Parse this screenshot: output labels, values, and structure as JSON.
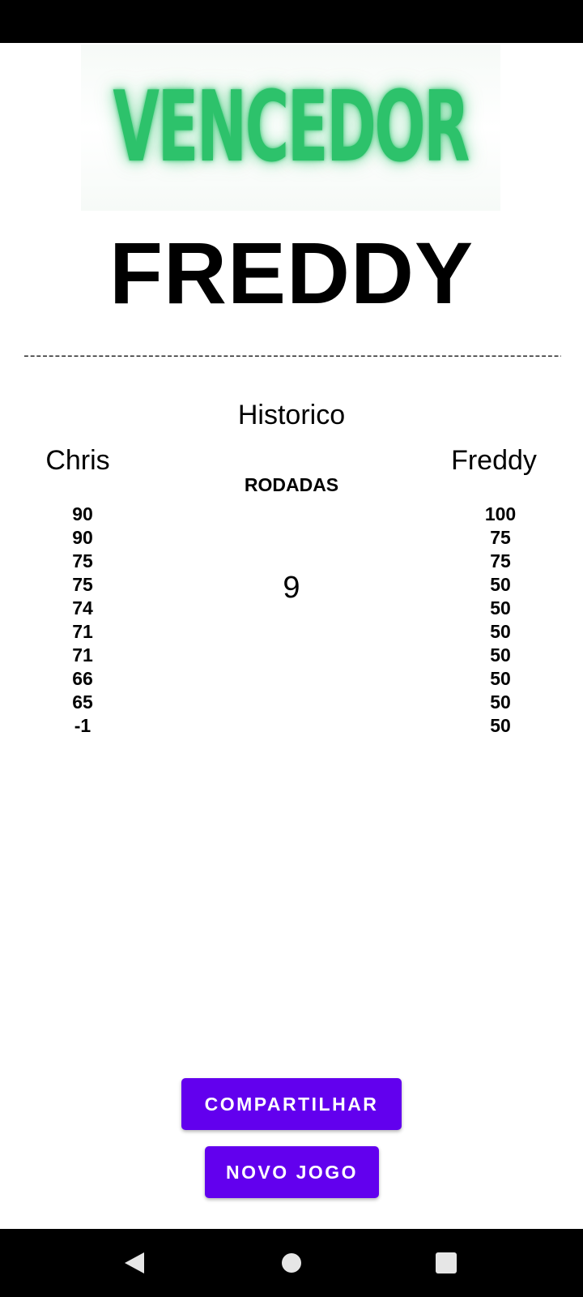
{
  "banner": {
    "text": "VENCEDOR",
    "color": "#2dc26b"
  },
  "winner": {
    "name": "FREDDY"
  },
  "divider": "-------------------------------------------------------------------------------------------------------------",
  "history": {
    "title": "Historico",
    "rounds_label": "RODADAS",
    "rounds_count": "9",
    "players": [
      {
        "name": "Chris",
        "scores": [
          "90",
          "90",
          "75",
          "75",
          "74",
          "71",
          "71",
          "66",
          "65",
          "-1"
        ]
      },
      {
        "name": "Freddy",
        "scores": [
          "100",
          "75",
          "75",
          "50",
          "50",
          "50",
          "50",
          "50",
          "50",
          "50"
        ]
      }
    ]
  },
  "actions": {
    "share_label": "COMPARTILHAR",
    "new_game_label": "NOVO JOGO",
    "button_color": "#6200ee"
  },
  "navigation": {
    "icons": [
      "back-icon",
      "home-icon",
      "recents-icon"
    ]
  }
}
